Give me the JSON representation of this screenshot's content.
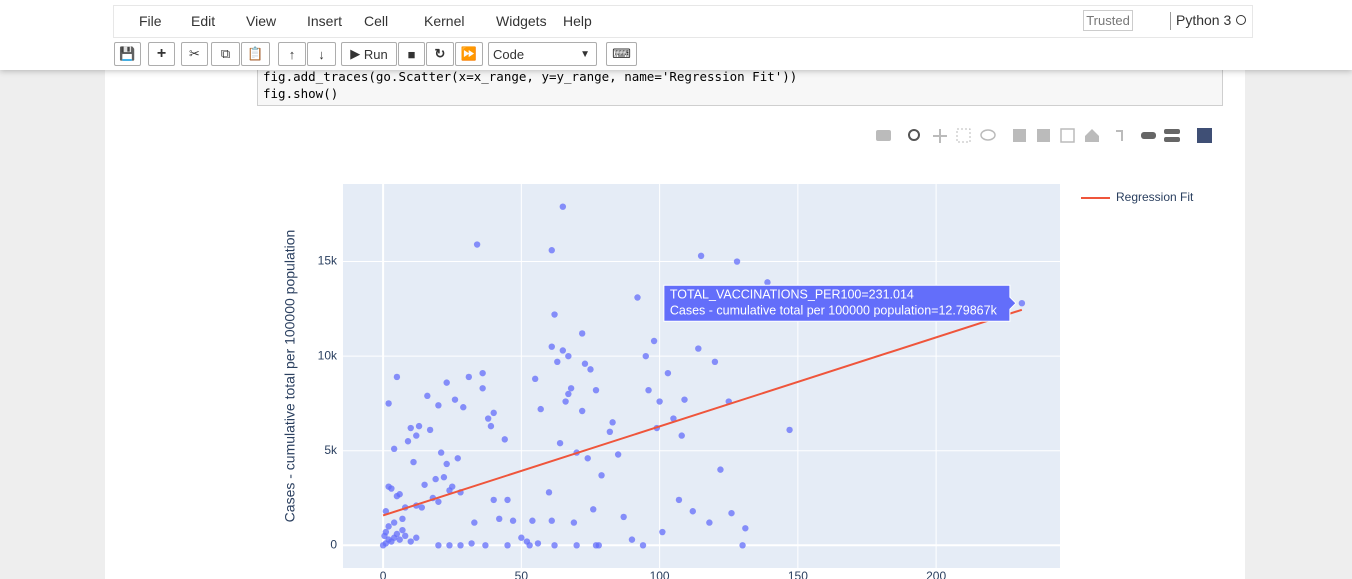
{
  "menu": [
    "File",
    "Edit",
    "View",
    "Insert",
    "Cell",
    "Kernel",
    "Widgets",
    "Help"
  ],
  "trusted": "Trusted",
  "kernel": "Python 3",
  "toolbar": {
    "run": "Run",
    "cell_type": "Code"
  },
  "code": [
    "fig.add_traces(go.Scatter(x=x_range, y=y_range, name='Regression Fit'))",
    "fig.show()"
  ],
  "chart_data": {
    "type": "scatter",
    "ylabel": "Cases - cumulative total per 100000 population",
    "color": "#636efa",
    "x": [
      0,
      1,
      2,
      0.5,
      3,
      1,
      2,
      4,
      5,
      6,
      7,
      8,
      10,
      12,
      1,
      2,
      3,
      4,
      5,
      6,
      5,
      2,
      4,
      7,
      8,
      9,
      10,
      11,
      12,
      13,
      12,
      14,
      15,
      16,
      17,
      18,
      19,
      20,
      20,
      21,
      22,
      23,
      23,
      24,
      25,
      26,
      27,
      28,
      29,
      31,
      33,
      34,
      36,
      36,
      38,
      39,
      40,
      40,
      42,
      44,
      45,
      47,
      50,
      52,
      54,
      55,
      57,
      60,
      61,
      61,
      61,
      62,
      63,
      64,
      65,
      65,
      66,
      67,
      67,
      68,
      69,
      70,
      72,
      72,
      73,
      74,
      75,
      76,
      77,
      79,
      82,
      83,
      85,
      87,
      90,
      92,
      94,
      95,
      96,
      98,
      99,
      100,
      101,
      103,
      105,
      107,
      108,
      109,
      112,
      114,
      115,
      118,
      120,
      122,
      125,
      126,
      128,
      130,
      131,
      139,
      147,
      20,
      24,
      28,
      32,
      37,
      45,
      53,
      56,
      62,
      70,
      77,
      78,
      231.014
    ],
    "values": [
      0,
      100,
      300,
      500,
      200,
      700,
      1000,
      400,
      600,
      300,
      800,
      500,
      200,
      400,
      1800,
      3100,
      3000,
      1200,
      2600,
      2700,
      8900,
      7500,
      5100,
      1400,
      2000,
      5500,
      6200,
      4400,
      5800,
      6300,
      2100,
      2000,
      3200,
      7900,
      6100,
      2500,
      3500,
      2300,
      7400,
      4900,
      3600,
      4300,
      8600,
      2900,
      3100,
      7700,
      4600,
      2800,
      7300,
      8900,
      1200,
      15900,
      8300,
      9100,
      6700,
      6300,
      7000,
      2400,
      1400,
      5600,
      2400,
      1300,
      400,
      200,
      1300,
      8800,
      7200,
      2800,
      1300,
      10500,
      15600,
      12200,
      9700,
      5400,
      10300,
      17900,
      7600,
      8000,
      10000,
      8300,
      1200,
      4900,
      7100,
      11200,
      9600,
      4600,
      9300,
      1900,
      8200,
      3700,
      6000,
      6500,
      4800,
      1500,
      300,
      13100,
      0,
      10000,
      8200,
      10800,
      6200,
      7600,
      700,
      9100,
      6700,
      2400,
      5800,
      7700,
      1800,
      10400,
      15300,
      1200,
      9700,
      4000,
      7600,
      1700,
      15000,
      0,
      900,
      13900,
      6100,
      0,
      0,
      0,
      100,
      0,
      0,
      0,
      100,
      0,
      0,
      0,
      0,
      12798.67
    ],
    "series": [
      {
        "name": "Regression Fit",
        "type": "line",
        "color": "#ef553b",
        "x": [
          0,
          231
        ],
        "values": [
          1580,
          12450
        ]
      }
    ],
    "xlim": [
      -14.5,
      244.8
    ],
    "ylim": [
      -1200,
      19100
    ],
    "xticks": [
      0,
      50,
      100,
      150,
      200
    ],
    "yticks": [
      0,
      {
        "value": 5000,
        "label": "5k"
      },
      {
        "value": 10000,
        "label": "10k"
      },
      {
        "value": 15000,
        "label": "15k"
      }
    ],
    "grid": true,
    "legend": "top-right",
    "hover": [
      "TOTAL_VACCINATIONS_PER100=231.014",
      "Cases - cumulative total per 100000 population=12.79867k"
    ]
  }
}
